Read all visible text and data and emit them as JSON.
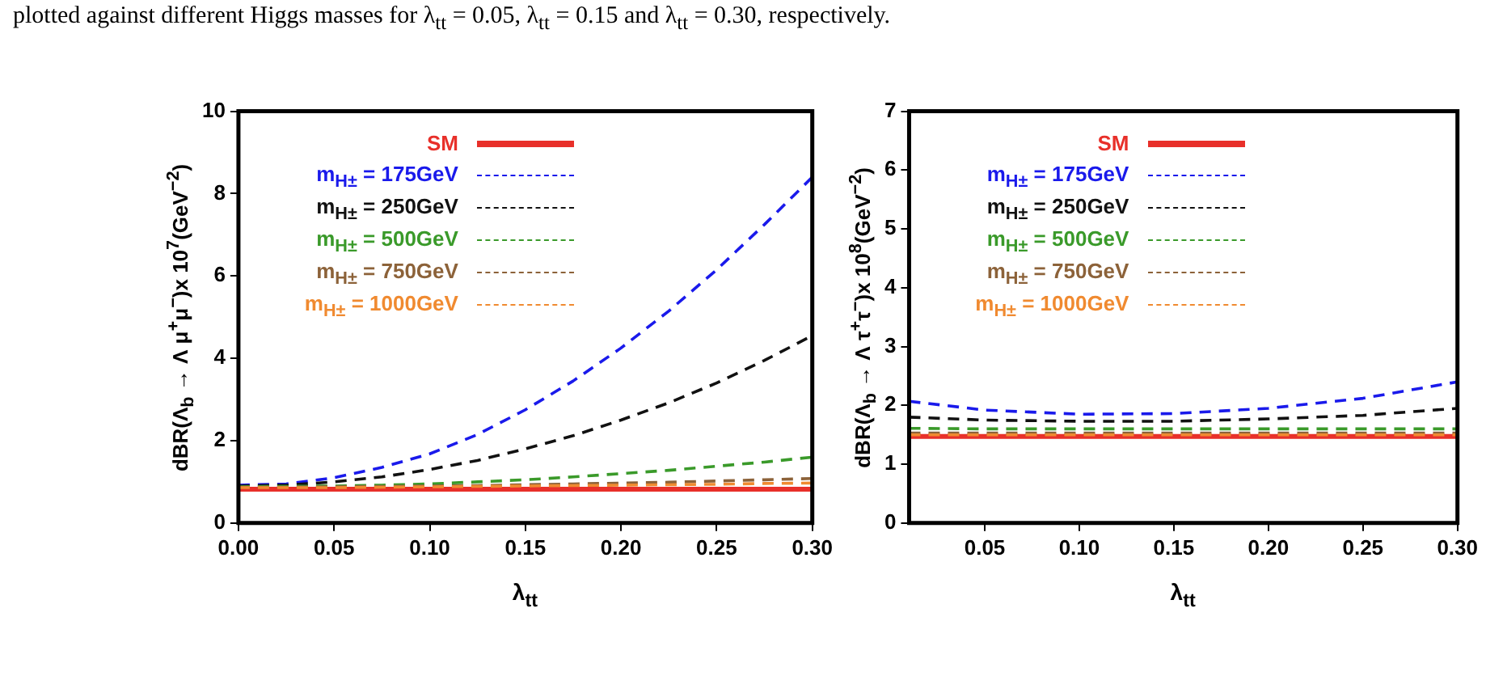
{
  "chart_data": [
    {
      "type": "line",
      "xlabel": "λ$_{tt}$",
      "ylabel": "dBR(Λ$_{b}$ → Λ μ$^{+}$μ$^{−}$)x 10$^{7}$(GeV$^{−2}$)",
      "annotations": [
        "plotted against different Higgs masses for λ$_{tt}$ = 0.05, λ$_{tt}$ = 0.15 and λ$_{tt}$ = 0.30, respectively."
      ],
      "x": [
        0,
        0.025,
        0.05,
        0.075,
        0.1,
        0.125,
        0.15,
        0.175,
        0.2,
        0.225,
        0.25,
        0.275,
        0.3
      ],
      "xlim": [
        0,
        0.3
      ],
      "xticks": [
        {
          "value": 0,
          "label": "0.00"
        },
        0.05,
        {
          "value": 0.1,
          "label": "0.10"
        },
        0.15,
        {
          "value": 0.2,
          "label": "0.20"
        },
        0.25,
        {
          "value": 0.3,
          "label": "0.30"
        }
      ],
      "ylim": [
        0,
        10
      ],
      "yticks": [
        0,
        2,
        4,
        6,
        8,
        10
      ],
      "grid": false,
      "legend": "top left",
      "marker": "none",
      "series": [
        {
          "name": "SM",
          "color": "#e8302a",
          "line_style": "solid",
          "values": [
            0.82,
            0.82,
            0.82,
            0.82,
            0.82,
            0.82,
            0.82,
            0.82,
            0.82,
            0.82,
            0.82,
            0.82,
            0.82
          ]
        },
        {
          "name": "m$_{H±}$ = 175GeV",
          "color": "#1a1aeb",
          "line_style": "dashed",
          "values": [
            0.92,
            0.95,
            1.1,
            1.35,
            1.68,
            2.15,
            2.75,
            3.45,
            4.25,
            5.15,
            6.15,
            7.25,
            8.4
          ]
        },
        {
          "name": "m$_{H±}$ = 250GeV",
          "color": "#111111",
          "line_style": "dashed",
          "values": [
            0.9,
            0.92,
            1.0,
            1.12,
            1.3,
            1.52,
            1.8,
            2.12,
            2.5,
            2.92,
            3.4,
            3.95,
            4.55
          ]
        },
        {
          "name": "m$_{H±}$ = 500GeV",
          "color": "#3a9a2a",
          "line_style": "dashed",
          "values": [
            0.88,
            0.89,
            0.9,
            0.92,
            0.95,
            1.0,
            1.05,
            1.12,
            1.2,
            1.28,
            1.38,
            1.48,
            1.6
          ]
        },
        {
          "name": "m$_{H±}$ = 750GeV",
          "color": "#8c6239",
          "line_style": "dashed",
          "values": [
            0.87,
            0.87,
            0.88,
            0.89,
            0.9,
            0.91,
            0.93,
            0.95,
            0.97,
            0.99,
            1.02,
            1.05,
            1.08
          ]
        },
        {
          "name": "m$_{H±}$ = 1000GeV",
          "color": "#f08a30",
          "line_style": "dashed",
          "values": [
            0.86,
            0.86,
            0.86,
            0.87,
            0.88,
            0.89,
            0.9,
            0.91,
            0.92,
            0.93,
            0.94,
            0.96,
            0.97
          ]
        }
      ]
    },
    {
      "type": "line",
      "xlabel": "λ$_{tt}$",
      "ylabel": "dBR(Λ$_{b}$ → Λ τ$^{+}$τ$^{−}$)x 10$^{8}$(GeV$^{−2}$)",
      "x": [
        0.01,
        0.05,
        0.1,
        0.15,
        0.2,
        0.25,
        0.3
      ],
      "xlim": [
        0.01,
        0.3
      ],
      "xticks": [
        0.05,
        {
          "value": 0.1,
          "label": "0.10"
        },
        0.15,
        {
          "value": 0.2,
          "label": "0.20"
        },
        0.25,
        {
          "value": 0.3,
          "label": "0.30"
        }
      ],
      "ylim": [
        0,
        7
      ],
      "yticks": [
        0,
        1,
        2,
        3,
        4,
        5,
        6,
        7
      ],
      "grid": false,
      "legend": "top left",
      "marker": "none",
      "series": [
        {
          "name": "SM",
          "color": "#e8302a",
          "line_style": "solid",
          "values": [
            1.47,
            1.47,
            1.47,
            1.47,
            1.47,
            1.47,
            1.47
          ]
        },
        {
          "name": "m$_{H±}$ = 175GeV",
          "color": "#1a1aeb",
          "line_style": "dashed",
          "values": [
            2.07,
            1.92,
            1.85,
            1.86,
            1.95,
            2.12,
            2.4
          ]
        },
        {
          "name": "m$_{H±}$ = 250GeV",
          "color": "#111111",
          "line_style": "dashed",
          "values": [
            1.8,
            1.75,
            1.73,
            1.73,
            1.77,
            1.83,
            1.95
          ]
        },
        {
          "name": "m$_{H±}$ = 500GeV",
          "color": "#3a9a2a",
          "line_style": "dashed",
          "values": [
            1.61,
            1.6,
            1.6,
            1.6,
            1.6,
            1.6,
            1.6
          ]
        },
        {
          "name": "m$_{H±}$ = 750GeV",
          "color": "#8c6239",
          "line_style": "dashed",
          "values": [
            1.53,
            1.53,
            1.53,
            1.53,
            1.53,
            1.53,
            1.53
          ]
        },
        {
          "name": "m$_{H±}$ = 1000GeV",
          "color": "#f08a30",
          "line_style": "dashed",
          "values": [
            1.5,
            1.5,
            1.5,
            1.5,
            1.5,
            1.5,
            1.5
          ]
        }
      ]
    }
  ]
}
